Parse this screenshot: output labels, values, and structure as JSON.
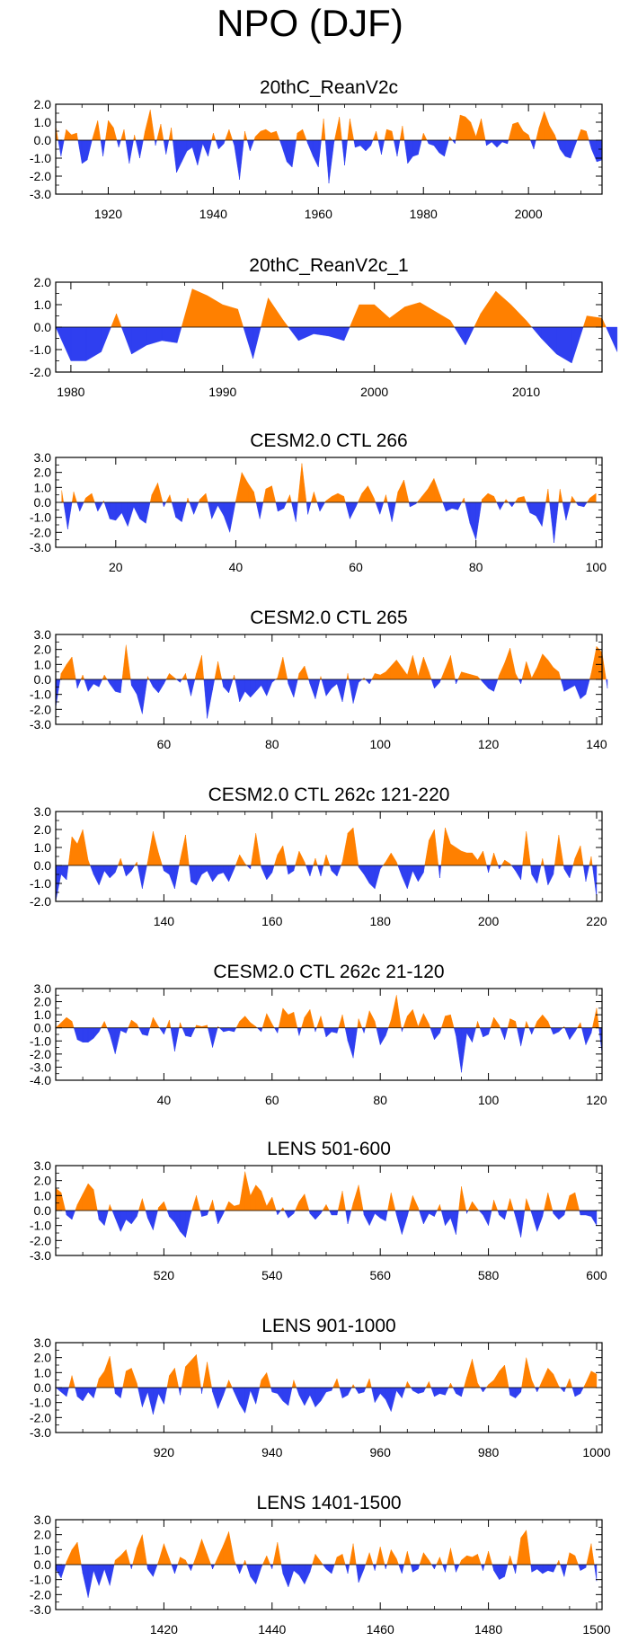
{
  "title": "NPO (DJF)",
  "colors": {
    "positive": "#ff8000",
    "negative": "#2f3ff0",
    "axis": "#000000"
  },
  "chart_data": [
    {
      "type": "area",
      "title": "20thC_ReanV2c",
      "xlim": [
        1910,
        2014
      ],
      "ylim": [
        -3,
        2
      ],
      "yticks": [
        2.0,
        1.0,
        0.0,
        -1.0,
        -2.0,
        -3.0
      ],
      "ytick_labels": [
        "2.0",
        "1.0",
        "0.0",
        "-1.0",
        "-2.0",
        "-3.0"
      ],
      "xticks": [
        1920,
        1940,
        1960,
        1980,
        2000
      ],
      "xtick_labels": [
        "1920",
        "1940",
        "1960",
        "1980",
        "2000"
      ],
      "x_start": 1910,
      "values": [
        0.8,
        -0.9,
        0.6,
        0.3,
        0.4,
        -1.3,
        -1.1,
        0.1,
        1.1,
        -0.9,
        1.1,
        0.7,
        -0.4,
        0.6,
        -1.3,
        0.3,
        -1.0,
        0.5,
        1.7,
        -0.3,
        0.9,
        -0.8,
        0.7,
        -1.8,
        -1.2,
        -0.6,
        -0.4,
        -1.4,
        -0.2,
        -0.9,
        0.4,
        -0.5,
        -0.2,
        0.6,
        -0.3,
        -2.2,
        0.5,
        -0.6,
        0.2,
        0.5,
        0.6,
        0.4,
        0.5,
        -0.3,
        -1.2,
        -1.5,
        0.4,
        0.6,
        -0.2,
        -0.9,
        -1.5,
        1.2,
        -2.4,
        -0.1,
        1.3,
        -1.4,
        1.2,
        -0.4,
        -0.3,
        -0.6,
        -0.3,
        0.5,
        -0.8,
        0.6,
        0.5,
        -0.9,
        0.8,
        -1.3,
        -0.9,
        -0.8,
        0.4,
        -0.2,
        -0.3,
        -0.7,
        -0.9,
        0.2,
        -0.2,
        1.4,
        1.3,
        1.0,
        0.2,
        1.2,
        -0.3,
        -0.1,
        -0.4,
        -0.1,
        -0.2,
        0.9,
        1.0,
        0.5,
        0.3,
        -0.5,
        0.7,
        1.6,
        0.8,
        0.3,
        -0.5,
        -0.9,
        -1.0,
        -0.2,
        0.6,
        0.5,
        -0.5,
        -1.2,
        -1.1
      ]
    },
    {
      "type": "area",
      "title": "20thC_ReanV2c_1",
      "xlim": [
        1979,
        2015
      ],
      "ylim": [
        -2,
        2
      ],
      "yticks": [
        2.0,
        1.0,
        0.0,
        -1.0,
        -2.0
      ],
      "ytick_labels": [
        "2.0",
        "1.0",
        "0.0",
        "-1.0",
        "-2.0"
      ],
      "xticks": [
        1980,
        1990,
        2000,
        2010
      ],
      "xtick_labels": [
        "1980",
        "1990",
        "2000",
        "2010"
      ],
      "x_start": 1979,
      "values": [
        0.0,
        -1.5,
        -1.5,
        -1.1,
        0.6,
        -1.2,
        -0.8,
        -0.6,
        -0.7,
        1.7,
        1.4,
        1.0,
        0.8,
        -1.4,
        1.3,
        0.3,
        -0.6,
        -0.3,
        -0.4,
        -0.6,
        1.0,
        1.0,
        0.4,
        0.9,
        1.1,
        0.7,
        0.3,
        -0.8,
        0.6,
        1.6,
        1.0,
        0.3,
        -0.5,
        -1.2,
        -1.6,
        0.5,
        0.4,
        -1.1
      ]
    },
    {
      "type": "area",
      "title": "CESM2.0 CTL 266",
      "xlim": [
        10,
        101
      ],
      "ylim": [
        -3,
        3
      ],
      "yticks": [
        3.0,
        2.0,
        1.0,
        0.0,
        -1.0,
        -2.0,
        -3.0
      ],
      "ytick_labels": [
        "3.0",
        "2.0",
        "1.0",
        "0.0",
        "-1.0",
        "-2.0",
        "-3.0"
      ],
      "xticks": [
        20,
        40,
        60,
        80,
        100
      ],
      "xtick_labels": [
        "20",
        "40",
        "60",
        "80",
        "100"
      ],
      "x_start": 11,
      "values": [
        0.8,
        -1.8,
        0.7,
        -0.6,
        0.3,
        0.6,
        -0.6,
        0.1,
        -1.1,
        -1.2,
        -0.7,
        -1.6,
        -0.3,
        -1.1,
        -1.4,
        0.5,
        1.3,
        -0.3,
        0.5,
        -1.0,
        -1.3,
        0.3,
        -0.8,
        0.2,
        0.6,
        -1.1,
        -0.2,
        -0.9,
        -2.0,
        0.1,
        2.0,
        1.3,
        0.7,
        -1.1,
        0.9,
        1.1,
        -0.6,
        -0.4,
        0.5,
        -1.3,
        2.6,
        -0.8,
        0.7,
        -0.6,
        0.1,
        0.4,
        0.6,
        0.4,
        -1.1,
        -0.3,
        0.6,
        1.1,
        0.3,
        -0.8,
        0.5,
        -1.3,
        0.7,
        1.5,
        -0.3,
        -0.1,
        0.4,
        0.9,
        1.6,
        0.5,
        -0.6,
        -0.4,
        -0.5,
        0.3,
        -1.4,
        -2.5,
        0.2,
        0.6,
        0.4,
        -0.5,
        0.2,
        -0.3,
        0.3,
        0.4,
        -0.7,
        -0.9,
        -1.6,
        0.9,
        -2.7,
        0.9,
        -1.2,
        0.4,
        -0.2,
        -0.3,
        0.3,
        0.6
      ]
    },
    {
      "type": "area",
      "title": "CESM2.0 CTL 265",
      "xlim": [
        40,
        141
      ],
      "ylim": [
        -3,
        3
      ],
      "yticks": [
        3.0,
        2.0,
        1.0,
        0.0,
        -1.0,
        -2.0,
        -3.0
      ],
      "ytick_labels": [
        "3.0",
        "2.0",
        "1.0",
        "0.0",
        "-1.0",
        "-2.0",
        "-3.0"
      ],
      "xticks": [
        60,
        80,
        100,
        120,
        140
      ],
      "xtick_labels": [
        "60",
        "80",
        "100",
        "120",
        "140"
      ],
      "x_start": 40,
      "values": [
        -1.9,
        0.4,
        1.0,
        1.5,
        -0.6,
        0.3,
        -0.8,
        -0.3,
        -0.5,
        0.3,
        -0.3,
        -0.8,
        -0.9,
        2.3,
        -0.4,
        -1.0,
        -2.3,
        0.2,
        -0.5,
        -0.9,
        -0.3,
        0.4,
        0.1,
        -0.2,
        0.4,
        -1.1,
        0.4,
        1.6,
        -2.6,
        -0.7,
        1.2,
        -0.5,
        -0.9,
        0.3,
        -1.5,
        -0.8,
        -1.2,
        -0.8,
        -0.4,
        -1.1,
        -0.2,
        0.1,
        1.5,
        -0.3,
        -1.2,
        0.4,
        0.9,
        -0.3,
        -1.3,
        0.2,
        -1.1,
        -0.6,
        -0.3,
        -1.5,
        0.4,
        -1.6,
        -0.2,
        0.1,
        -0.3,
        0.4,
        0.3,
        0.5,
        0.9,
        1.3,
        0.8,
        0.3,
        1.6,
        0.2,
        1.5,
        0.5,
        -0.6,
        -0.2,
        0.7,
        1.6,
        -0.3,
        0.5,
        0.4,
        0.3,
        0.2,
        -0.2,
        -0.6,
        -0.8,
        0.3,
        1.1,
        2.1,
        0.4,
        -0.3,
        1.2,
        0.1,
        0.8,
        1.7,
        1.3,
        0.8,
        0.5,
        -0.8,
        -0.6,
        -0.4,
        -1.3,
        -1.0,
        0.4,
        2.2,
        1.8,
        -0.6
      ]
    },
    {
      "type": "area",
      "title": "CESM2.0 CTL 262c 121-220",
      "xlim": [
        120,
        221
      ],
      "ylim": [
        -2,
        3
      ],
      "yticks": [
        3.0,
        2.0,
        1.0,
        0.0,
        -1.0,
        -2.0
      ],
      "ytick_labels": [
        "3.0",
        "2.0",
        "1.0",
        "0.0",
        "-1.0",
        "-2.0"
      ],
      "xticks": [
        140,
        160,
        180,
        200,
        220
      ],
      "xtick_labels": [
        "140",
        "160",
        "180",
        "200",
        "220"
      ],
      "x_start": 120,
      "values": [
        -2.0,
        -0.5,
        -0.8,
        1.6,
        1.2,
        2.0,
        0.3,
        -0.5,
        -1.1,
        -0.3,
        -0.7,
        -0.4,
        0.4,
        -0.6,
        -0.3,
        0.2,
        -1.3,
        0.2,
        1.9,
        0.7,
        -0.3,
        -0.5,
        -1.3,
        0.3,
        1.7,
        -0.9,
        -1.1,
        -0.5,
        -0.3,
        -0.9,
        -0.5,
        -0.4,
        -0.9,
        -0.2,
        0.6,
        0.1,
        -0.2,
        1.8,
        -0.1,
        -0.8,
        -0.4,
        0.6,
        1.1,
        -0.5,
        -0.3,
        0.8,
        0.2,
        -0.6,
        0.4,
        -0.6,
        0.6,
        -0.3,
        -0.6,
        0.2,
        1.8,
        2.1,
        -0.1,
        -0.5,
        -1.0,
        -1.3,
        -0.2,
        0.2,
        0.7,
        0.2,
        -0.6,
        -1.3,
        -0.3,
        -0.9,
        -0.4,
        1.4,
        2.0,
        -0.7,
        2.1,
        1.2,
        1.0,
        0.8,
        0.7,
        0.7,
        0.3,
        0.8,
        -0.4,
        0.7,
        -0.2,
        0.3,
        0.1,
        -0.3,
        -0.8,
        1.9,
        -0.5,
        -1.0,
        0.4,
        -1.1,
        -0.5,
        1.7,
        -0.2,
        -0.7,
        0.4,
        1.1,
        -0.9,
        0.5,
        -1.8
      ]
    },
    {
      "type": "area",
      "title": "CESM2.0 CTL 262c 21-120",
      "xlim": [
        20,
        121
      ],
      "ylim": [
        -4,
        3
      ],
      "yticks": [
        3.0,
        2.0,
        1.0,
        0.0,
        -1.0,
        -2.0,
        -3.0,
        -4.0
      ],
      "ytick_labels": [
        "3.0",
        "2.0",
        "1.0",
        "0.0",
        "-1.0",
        "-2.0",
        "-3.0",
        "-4.0"
      ],
      "xticks": [
        40,
        60,
        80,
        100,
        120
      ],
      "xtick_labels": [
        "40",
        "60",
        "80",
        "100",
        "120"
      ],
      "x_start": 20,
      "values": [
        0.0,
        0.4,
        0.8,
        0.5,
        -0.9,
        -1.1,
        -1.1,
        -0.8,
        -0.3,
        0.5,
        -0.5,
        -2.0,
        -0.2,
        -0.4,
        0.6,
        0.3,
        -0.5,
        -0.6,
        0.8,
        0.1,
        -0.5,
        0.6,
        -1.8,
        0.4,
        -0.6,
        -0.7,
        0.2,
        0.1,
        0.2,
        -1.5,
        0.1,
        -0.3,
        -0.2,
        -0.3,
        0.5,
        0.9,
        0.4,
        0.1,
        -0.3,
        1.1,
        0.3,
        -0.4,
        1.5,
        1.0,
        1.2,
        -0.6,
        0.8,
        1.4,
        -0.3,
        0.9,
        -0.7,
        -0.3,
        -0.4,
        1.0,
        -1.0,
        -2.3,
        0.7,
        -0.4,
        1.3,
        0.5,
        -1.3,
        -0.6,
        0.6,
        2.5,
        -0.3,
        0.9,
        1.4,
        0.1,
        1.1,
        0.3,
        -0.9,
        -0.4,
        0.9,
        1.0,
        -0.6,
        -3.4,
        -0.4,
        -1.1,
        0.5,
        -0.7,
        -0.5,
        0.8,
        0.2,
        -0.9,
        0.7,
        0.5,
        -1.4,
        0.5,
        -0.5,
        0.5,
        1.0,
        0.5,
        -0.5,
        -0.3,
        0.1,
        -0.9,
        -0.3,
        0.4,
        -1.3,
        -0.4,
        1.5,
        -2.0
      ]
    },
    {
      "type": "area",
      "title": "LENS 501-600",
      "xlim": [
        500,
        601
      ],
      "ylim": [
        -3,
        3
      ],
      "yticks": [
        3.0,
        2.0,
        1.0,
        0.0,
        -1.0,
        -2.0,
        -3.0
      ],
      "ytick_labels": [
        "3.0",
        "2.0",
        "1.0",
        "0.0",
        "-1.0",
        "-2.0",
        "-3.0"
      ],
      "xticks": [
        520,
        540,
        560,
        580,
        600
      ],
      "xtick_labels": [
        "520",
        "540",
        "560",
        "580",
        "600"
      ],
      "x_start": 500,
      "values": [
        1.5,
        1.2,
        -0.3,
        -0.6,
        0.4,
        1.1,
        1.8,
        1.4,
        -0.6,
        -1.0,
        0.4,
        -0.5,
        -1.4,
        -0.6,
        -0.9,
        -0.4,
        0.8,
        -0.5,
        -1.3,
        0.2,
        0.6,
        -0.4,
        -0.8,
        -1.4,
        -1.8,
        -0.2,
        1.0,
        -0.4,
        -0.3,
        0.7,
        -0.9,
        -0.2,
        0.6,
        0.3,
        0.4,
        2.6,
        1.0,
        1.7,
        1.3,
        0.3,
        0.9,
        -0.3,
        0.2,
        -0.5,
        -0.2,
        0.6,
        1.1,
        -0.2,
        -0.6,
        -0.2,
        0.4,
        -0.3,
        -0.3,
        1.3,
        -0.9,
        0.5,
        1.7,
        -0.3,
        -1.0,
        -0.2,
        -0.5,
        -0.7,
        1.2,
        -0.3,
        -1.6,
        -0.4,
        1.0,
        0.2,
        -0.9,
        -0.2,
        -0.4,
        0.4,
        -1.0,
        -0.5,
        -1.6,
        1.6,
        -0.2,
        0.6,
        0.1,
        -0.3,
        -1.0,
        0.7,
        -0.3,
        -0.6,
        0.8,
        -0.4,
        -1.8,
        0.8,
        -0.2,
        -1.4,
        -0.4,
        1.2,
        -0.2,
        -0.6,
        -0.3,
        1.0,
        1.2,
        -0.3,
        -0.3,
        -0.4,
        -1.0
      ]
    },
    {
      "type": "area",
      "title": "LENS 901-1000",
      "xlim": [
        900,
        1001
      ],
      "ylim": [
        -3,
        3
      ],
      "yticks": [
        3.0,
        2.0,
        1.0,
        0.0,
        -1.0,
        -2.0,
        -3.0
      ],
      "ytick_labels": [
        "3.0",
        "2.0",
        "1.0",
        "0.0",
        "-1.0",
        "-2.0",
        "-3.0"
      ],
      "xticks": [
        920,
        940,
        960,
        980,
        1000
      ],
      "xtick_labels": [
        "920",
        "940",
        "960",
        "980",
        "1000"
      ],
      "x_start": 900,
      "values": [
        0.0,
        -0.3,
        -0.6,
        0.8,
        -0.6,
        -0.9,
        -0.3,
        -0.7,
        0.6,
        1.1,
        2.1,
        -0.4,
        -0.7,
        1.1,
        1.3,
        0.3,
        -1.3,
        -0.3,
        -1.8,
        -0.4,
        -1.1,
        0.8,
        1.3,
        -0.5,
        1.4,
        1.8,
        2.2,
        -0.4,
        1.7,
        -0.3,
        -1.4,
        -0.5,
        0.5,
        -0.3,
        -1.1,
        -1.7,
        -0.2,
        -1.1,
        0.5,
        1.0,
        -0.3,
        -0.4,
        -0.9,
        -1.2,
        0.5,
        -0.5,
        -1.2,
        -0.5,
        -1.3,
        -0.9,
        -0.3,
        -0.2,
        0.6,
        -0.7,
        -0.5,
        0.2,
        -0.4,
        -0.3,
        0.6,
        -1.0,
        -0.4,
        -0.8,
        -1.6,
        -0.2,
        -0.7,
        0.4,
        -0.2,
        -0.4,
        -0.3,
        0.4,
        -0.6,
        -0.4,
        -0.5,
        0.3,
        -0.4,
        -0.6,
        0.7,
        1.9,
        0.3,
        -0.3,
        0.2,
        0.5,
        1.1,
        1.5,
        -0.5,
        -0.7,
        -0.3,
        2.0,
        0.5,
        -0.3,
        0.5,
        1.3,
        0.9,
        0.1,
        -0.3,
        0.6,
        -0.6,
        -0.4,
        0.3,
        1.1,
        0.9
      ]
    },
    {
      "type": "area",
      "title": "LENS 1401-1500",
      "xlim": [
        1400,
        1501
      ],
      "ylim": [
        -3,
        3
      ],
      "yticks": [
        3.0,
        2.0,
        1.0,
        0.0,
        -1.0,
        -2.0,
        -3.0
      ],
      "ytick_labels": [
        "3.0",
        "2.0",
        "1.0",
        "0.0",
        "-1.0",
        "-2.0",
        "-3.0"
      ],
      "xticks": [
        1420,
        1440,
        1460,
        1480,
        1500
      ],
      "xtick_labels": [
        "1420",
        "1440",
        "1460",
        "1480",
        "1500"
      ],
      "x_start": 1400,
      "values": [
        -0.3,
        -0.9,
        0.2,
        1.0,
        1.5,
        -0.6,
        -2.2,
        -0.4,
        -1.4,
        -0.3,
        -1.4,
        0.3,
        0.6,
        1.0,
        -0.3,
        1.1,
        2.0,
        -0.3,
        -0.8,
        0.2,
        1.4,
        0.4,
        -0.6,
        0.5,
        0.3,
        -0.4,
        0.6,
        1.7,
        0.7,
        -0.3,
        0.5,
        1.3,
        2.2,
        0.3,
        -0.6,
        0.3,
        -0.8,
        -1.3,
        -0.2,
        0.6,
        -0.3,
        1.5,
        -0.6,
        -1.5,
        -0.4,
        -0.7,
        -1.3,
        -0.5,
        0.7,
        0.2,
        -0.3,
        -0.6,
        0.5,
        0.7,
        -0.6,
        1.4,
        -1.2,
        -0.3,
        0.8,
        -0.4,
        1.2,
        -0.3,
        1.0,
        0.4,
        -0.6,
        0.9,
        -0.5,
        -0.3,
        0.8,
        0.3,
        -0.3,
        0.5,
        -0.5,
        1.1,
        -0.5,
        0.3,
        0.6,
        0.5,
        0.7,
        -0.4,
        0.9,
        -0.4,
        -1.0,
        -0.8,
        0.6,
        -0.6,
        1.8,
        2.3,
        -0.5,
        -0.3,
        -0.6,
        -0.4,
        -0.5,
        0.3,
        -0.8,
        0.8,
        0.6,
        -0.4,
        -0.2,
        1.4,
        -1.1
      ]
    }
  ]
}
